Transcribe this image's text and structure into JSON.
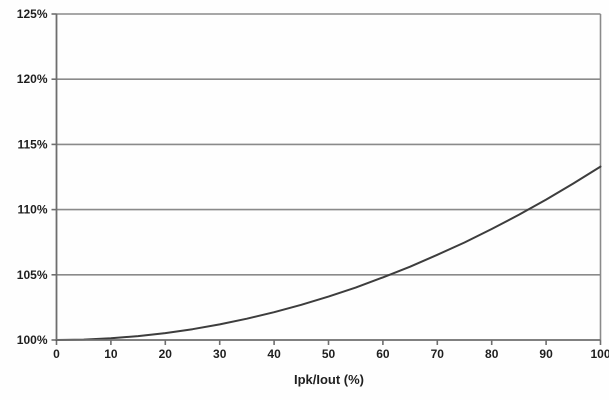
{
  "chart_data": {
    "type": "line",
    "title": "",
    "xlabel": "Ipk/Iout (%)",
    "ylabel": "",
    "xlim": [
      0,
      100
    ],
    "ylim": [
      100,
      125
    ],
    "x_ticks": [
      0,
      10,
      20,
      30,
      40,
      50,
      60,
      70,
      80,
      90,
      100
    ],
    "x_tick_labels": [
      "0",
      "10",
      "20",
      "30",
      "40",
      "50",
      "60",
      "70",
      "80",
      "90",
      "100"
    ],
    "y_ticks": [
      100,
      105,
      110,
      115,
      120,
      125
    ],
    "y_tick_labels": [
      "100%",
      "105%",
      "110%",
      "115%",
      "120%",
      "125%"
    ],
    "grid": "horizontal",
    "legend": "none",
    "plot_border": true,
    "series": [
      {
        "points": [
          [
            0,
            100.0
          ],
          [
            5,
            100.03
          ],
          [
            10,
            100.13
          ],
          [
            15,
            100.3
          ],
          [
            20,
            100.53
          ],
          [
            25,
            100.83
          ],
          [
            30,
            101.2
          ],
          [
            35,
            101.63
          ],
          [
            40,
            102.13
          ],
          [
            45,
            102.7
          ],
          [
            50,
            103.33
          ],
          [
            55,
            104.02
          ],
          [
            60,
            104.8
          ],
          [
            65,
            105.62
          ],
          [
            70,
            106.53
          ],
          [
            75,
            107.48
          ],
          [
            80,
            108.51
          ],
          [
            85,
            109.6
          ],
          [
            90,
            110.77
          ],
          [
            95,
            112.0
          ],
          [
            100,
            113.3
          ]
        ]
      }
    ],
    "colors": {
      "grid": "#8a8a8a",
      "axis": "#6e6e6e",
      "curve": "#3d3d3d",
      "text": "#1f1f1f",
      "background": "#fefefe"
    }
  }
}
